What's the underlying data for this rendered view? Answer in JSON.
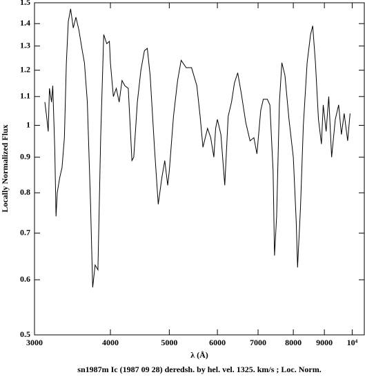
{
  "chart_data": {
    "type": "line",
    "title": "sn1987m Ic (1987 09 28) deredsh. by hel. vel.  1325. km/s ;  Loc. Norm.",
    "x_label": "λ (Å)",
    "y_label": "Locally Normalized Flux",
    "xlog": true,
    "ylog": true,
    "grid": false,
    "xlim": [
      3000,
      10470
    ],
    "ylim": [
      0.5,
      1.5
    ],
    "xticks": [
      3000,
      4000,
      5000,
      6000,
      7000,
      8000,
      9000,
      {
        "value": 10000,
        "label": "10⁴"
      }
    ],
    "yticks": [
      0.5,
      0.6,
      0.7,
      0.8,
      0.9,
      1,
      1.1,
      1.2,
      1.3,
      1.4,
      1.5
    ],
    "series": [
      {
        "color": "#000000",
        "x": [
          3120,
          3145,
          3160,
          3175,
          3200,
          3215,
          3240,
          3255,
          3270,
          3300,
          3330,
          3360,
          3385,
          3410,
          3440,
          3475,
          3510,
          3550,
          3590,
          3625,
          3665,
          3710,
          3740,
          3775,
          3815,
          3855,
          3900,
          3945,
          3985,
          4000,
          4045,
          4090,
          4135,
          4180,
          4225,
          4280,
          4340,
          4370,
          4430,
          4490,
          4550,
          4600,
          4650,
          4730,
          4795,
          4860,
          4915,
          4970,
          5000,
          5080,
          5160,
          5230,
          5330,
          5440,
          5550,
          5620,
          5680,
          5780,
          5850,
          5920,
          5960,
          6000,
          6080,
          6170,
          6250,
          6330,
          6400,
          6480,
          6570,
          6680,
          6790,
          6890,
          6970,
          7070,
          7140,
          7250,
          7320,
          7410,
          7450,
          7510,
          7590,
          7660,
          7750,
          7870,
          8000,
          8090,
          8130,
          8220,
          8310,
          8430,
          8540,
          8610,
          8700,
          8800,
          8900,
          8960,
          9060,
          9150,
          9250,
          9380,
          9500,
          9600,
          9700,
          9830,
          9920
        ],
        "values": [
          1.08,
          1.02,
          0.98,
          1.13,
          1.08,
          1.14,
          0.92,
          0.74,
          0.8,
          0.84,
          0.87,
          0.96,
          1.23,
          1.41,
          1.47,
          1.38,
          1.43,
          1.37,
          1.29,
          1.23,
          1.08,
          0.77,
          0.585,
          0.63,
          0.62,
          0.96,
          1.35,
          1.31,
          1.32,
          1.23,
          1.1,
          1.13,
          1.08,
          1.16,
          1.14,
          1.13,
          0.89,
          0.9,
          1.08,
          1.2,
          1.28,
          1.29,
          1.18,
          0.92,
          0.77,
          0.84,
          0.89,
          0.82,
          0.86,
          1.03,
          1.16,
          1.24,
          1.21,
          1.21,
          1.14,
          1.03,
          0.93,
          0.99,
          0.96,
          0.9,
          0.99,
          1.02,
          0.97,
          0.82,
          1.03,
          1.08,
          1.15,
          1.19,
          1.11,
          1.01,
          0.95,
          0.96,
          0.91,
          1.05,
          1.09,
          1.09,
          1.07,
          0.86,
          0.65,
          0.74,
          1.08,
          1.23,
          1.18,
          1.02,
          0.9,
          0.725,
          0.625,
          0.76,
          1.0,
          1.23,
          1.35,
          1.39,
          1.23,
          1.02,
          0.94,
          1.07,
          0.98,
          1.1,
          0.9,
          1.02,
          1.07,
          0.97,
          1.04,
          0.95,
          1.04
        ]
      }
    ]
  }
}
